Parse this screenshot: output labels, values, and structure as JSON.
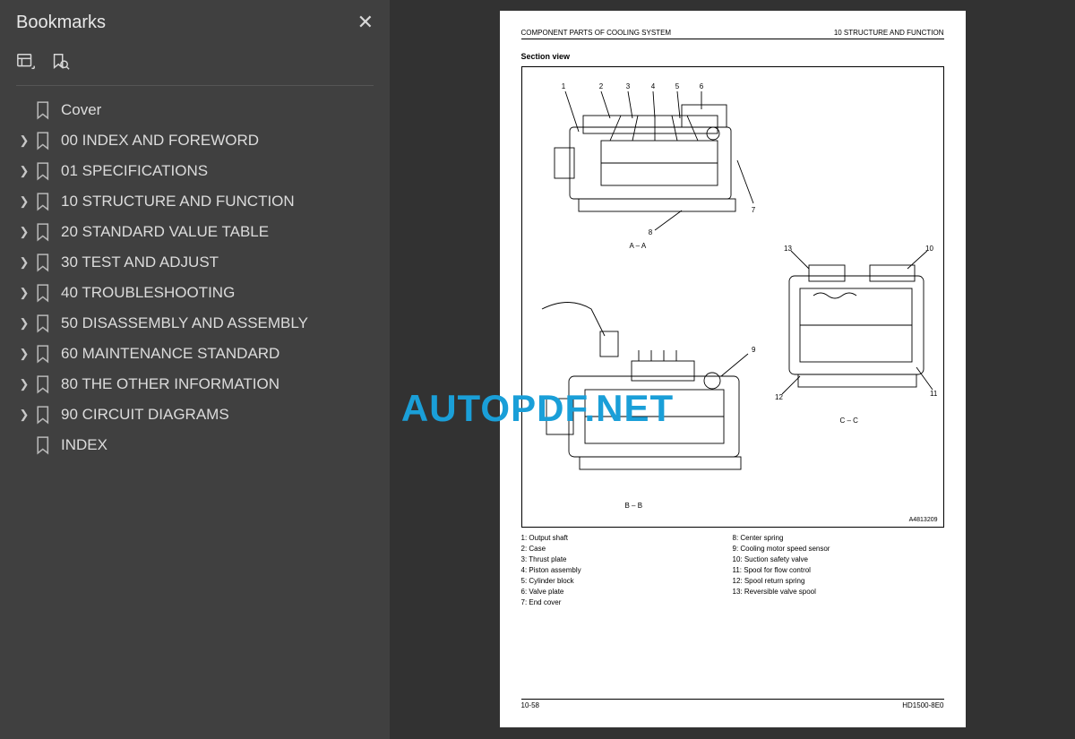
{
  "sidebar": {
    "title": "Bookmarks",
    "items": [
      {
        "label": "Cover",
        "expandable": false
      },
      {
        "label": "00 INDEX AND FOREWORD",
        "expandable": true
      },
      {
        "label": "01 SPECIFICATIONS",
        "expandable": true
      },
      {
        "label": "10 STRUCTURE AND FUNCTION",
        "expandable": true
      },
      {
        "label": "20 STANDARD VALUE TABLE",
        "expandable": true
      },
      {
        "label": "30 TEST AND ADJUST",
        "expandable": true
      },
      {
        "label": "40 TROUBLESHOOTING",
        "expandable": true
      },
      {
        "label": "50 DISASSEMBLY AND ASSEMBLY",
        "expandable": true
      },
      {
        "label": "60 MAINTENANCE STANDARD",
        "expandable": true
      },
      {
        "label": "80 THE OTHER INFORMATION",
        "expandable": true
      },
      {
        "label": "90 CIRCUIT DIAGRAMS",
        "expandable": true
      },
      {
        "label": "INDEX",
        "expandable": false
      }
    ]
  },
  "page": {
    "header_left": "COMPONENT PARTS OF COOLING SYSTEM",
    "header_right": "10 STRUCTURE AND FUNCTION",
    "section_title": "Section view",
    "footer_left": "10-58",
    "footer_right": "HD1500-8E0",
    "figure_id": "A4813209",
    "view_labels": {
      "aa": "A – A",
      "bb": "B – B",
      "cc": "C – C"
    },
    "callouts_top": [
      "1",
      "2",
      "3",
      "4",
      "5",
      "6",
      "7",
      "8"
    ],
    "callouts_right": [
      "9",
      "10",
      "11",
      "12",
      "13"
    ],
    "legend_left": [
      "1: Output shaft",
      "2: Case",
      "3: Thrust plate",
      "4: Piston assembly",
      "5: Cylinder block",
      "6: Valve plate",
      "7: End cover"
    ],
    "legend_right": [
      "8: Center spring",
      "9: Cooling motor speed sensor",
      "10: Suction safety valve",
      "11: Spool for flow control",
      "12: Spool return spring",
      "13: Reversible valve spool"
    ]
  },
  "watermark": "AUTOPDF.NET",
  "colors": {
    "sidebar_bg": "#404040",
    "sidebar_fg": "#d8d8d8",
    "page_bg": "#ffffff",
    "watermark": "#1a9fd8"
  }
}
